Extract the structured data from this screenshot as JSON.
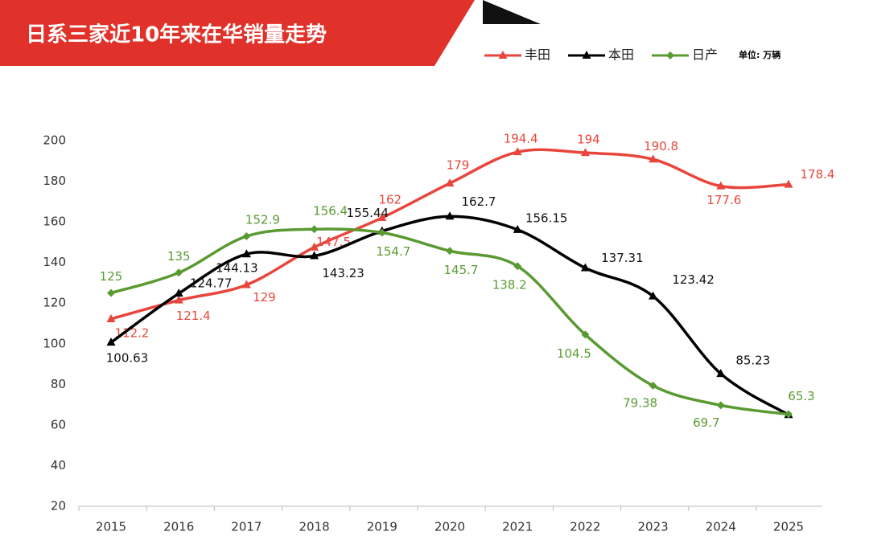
{
  "chart_data": {
    "type": "line",
    "title": "日系三家近10年来在华销量走势",
    "unit_note": "单位: 万辆",
    "categories": [
      "2015",
      "2016",
      "2017",
      "2018",
      "2019",
      "2020",
      "2021",
      "2022",
      "2023",
      "2024",
      "2025"
    ],
    "series": [
      {
        "name": "丰田",
        "color": "#e8463c",
        "marker": "triangle",
        "values": [
          112.2,
          121.4,
          129,
          147.5,
          162,
          179,
          194.4,
          194,
          190.8,
          177.6,
          178.4
        ]
      },
      {
        "name": "本田",
        "color": "#000000",
        "marker": "triangle",
        "values": [
          100.63,
          124.77,
          144.13,
          143.23,
          155.44,
          162.7,
          156.15,
          137.31,
          123.42,
          85.23,
          65
        ],
        "value_labels": [
          "100.63",
          "124.77",
          "144.13",
          "143.23",
          "155.44",
          "162.7",
          "156.15",
          "137.31",
          "123.42",
          "85.23",
          null
        ]
      },
      {
        "name": "日产",
        "color": "#5a9a32",
        "marker": "diamond",
        "values": [
          125,
          135,
          152.9,
          156.4,
          154.7,
          145.7,
          138.2,
          104.5,
          79.38,
          69.7,
          65.3
        ]
      }
    ],
    "ylim": [
      20,
      200
    ],
    "yticks": [
      20,
      40,
      60,
      80,
      100,
      120,
      140,
      160,
      180,
      200
    ],
    "grid": false
  }
}
